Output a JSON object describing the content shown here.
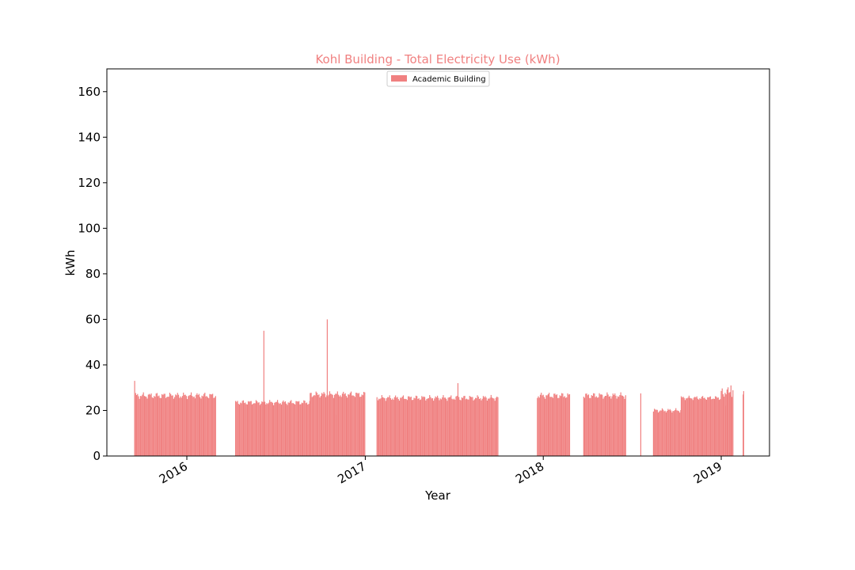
{
  "chart_data": {
    "type": "bar",
    "title": "Kohl Building - Total Electricity Use (kWh)",
    "title_color": "#f08080",
    "xlabel": "Year",
    "ylabel": "kWh",
    "ylim": [
      0,
      170
    ],
    "xlim": [
      "2015-07-21",
      "2019-04-10"
    ],
    "yticks": [
      0,
      20,
      40,
      60,
      80,
      100,
      120,
      140,
      160
    ],
    "xticks": [
      {
        "date": "2016-01-01",
        "label": "2016"
      },
      {
        "date": "2017-01-01",
        "label": "2017"
      },
      {
        "date": "2018-01-01",
        "label": "2018"
      },
      {
        "date": "2019-01-01",
        "label": "2019"
      }
    ],
    "bar_color": "#f08080",
    "legend": {
      "placement": "top-center",
      "entries": [
        {
          "label": "Academic Building",
          "color": "#f08080"
        }
      ]
    },
    "series": [
      {
        "name": "Academic Building",
        "segments": [
          {
            "start": "2015-09-16",
            "end": "2016-03-01",
            "base": 26.5,
            "variation": 1.5,
            "spacing": 2
          },
          {
            "start": "2016-04-10",
            "end": "2016-09-10",
            "base": 23.5,
            "variation": 1.2,
            "spacing": 2
          },
          {
            "start": "2016-09-10",
            "end": "2016-12-31",
            "base": 27,
            "variation": 1.5,
            "spacing": 2
          },
          {
            "start": "2017-01-25",
            "end": "2017-10-01",
            "base": 25.5,
            "variation": 1.3,
            "spacing": 2
          },
          {
            "start": "2017-12-20",
            "end": "2018-02-25",
            "base": 26.5,
            "variation": 1.5,
            "spacing": 2
          },
          {
            "start": "2018-03-25",
            "end": "2018-06-20",
            "base": 26.5,
            "variation": 1.5,
            "spacing": 2
          },
          {
            "start": "2018-08-15",
            "end": "2018-10-10",
            "base": 20,
            "variation": 1.0,
            "spacing": 2
          },
          {
            "start": "2018-10-11",
            "end": "2019-01-01",
            "base": 25.5,
            "variation": 1.0,
            "spacing": 2
          },
          {
            "start": "2019-01-01",
            "end": "2019-01-25",
            "base": 28,
            "variation": 2.5,
            "spacing": 2
          }
        ],
        "points": [
          {
            "date": "2015-09-16",
            "value": 33
          },
          {
            "date": "2016-06-07",
            "value": 55
          },
          {
            "date": "2016-10-15",
            "value": 60
          },
          {
            "date": "2016-11-02",
            "value": 18
          },
          {
            "date": "2017-07-10",
            "value": 32
          },
          {
            "date": "2018-07-20",
            "value": 27.5
          },
          {
            "date": "2019-01-10",
            "value": 22
          },
          {
            "date": "2019-01-21",
            "value": 31
          },
          {
            "date": "2019-02-15",
            "value": 27
          },
          {
            "date": "2019-02-16",
            "value": 28.5
          }
        ]
      }
    ]
  }
}
